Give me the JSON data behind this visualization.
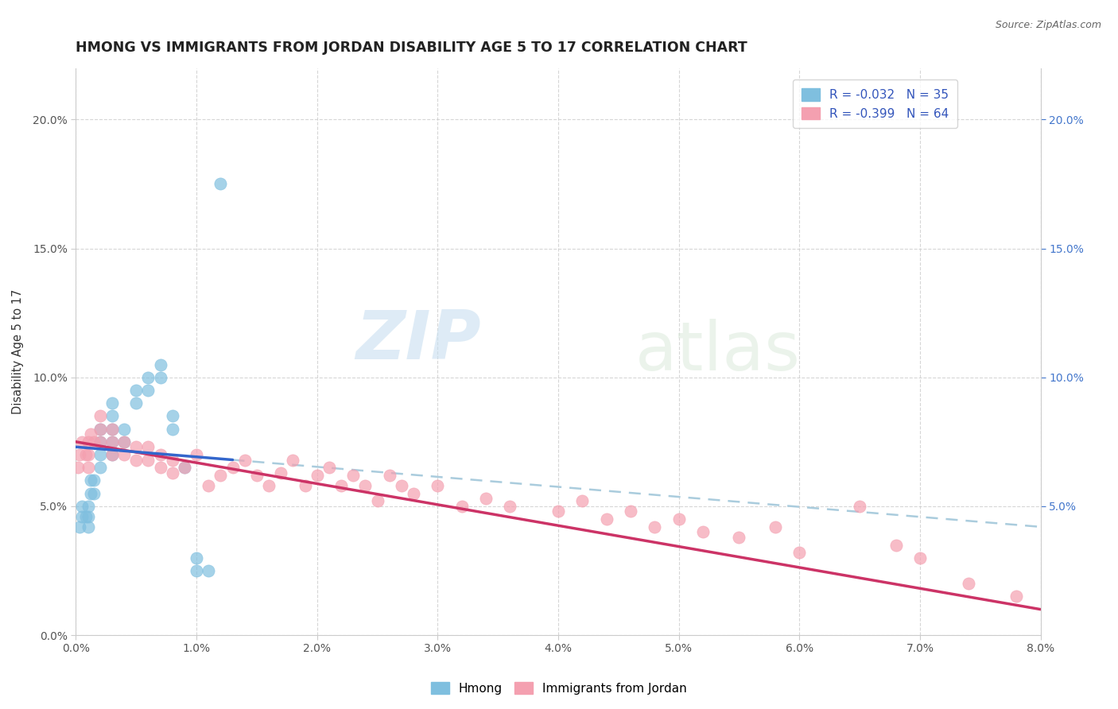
{
  "title": "HMONG VS IMMIGRANTS FROM JORDAN DISABILITY AGE 5 TO 17 CORRELATION CHART",
  "source": "Source: ZipAtlas.com",
  "ylabel": "Disability Age 5 to 17",
  "xlim": [
    0.0,
    0.08
  ],
  "ylim": [
    0.0,
    0.22
  ],
  "xticks": [
    0.0,
    0.01,
    0.02,
    0.03,
    0.04,
    0.05,
    0.06,
    0.07,
    0.08
  ],
  "yticks_left": [
    0.0,
    0.05,
    0.1,
    0.15,
    0.2
  ],
  "yticks_right": [
    0.05,
    0.1,
    0.15,
    0.2
  ],
  "hmong_color": "#7fbfdf",
  "jordan_color": "#f4a0b0",
  "hmong_line_color": "#3366cc",
  "jordan_line_color": "#cc3366",
  "dashed_line_color": "#aaccdd",
  "background_color": "#ffffff",
  "watermark_zip": "ZIP",
  "watermark_atlas": "atlas",
  "hmong_scatter_x": [
    0.0003,
    0.0005,
    0.0005,
    0.0008,
    0.001,
    0.001,
    0.001,
    0.0012,
    0.0012,
    0.0015,
    0.0015,
    0.002,
    0.002,
    0.002,
    0.002,
    0.003,
    0.003,
    0.003,
    0.003,
    0.003,
    0.004,
    0.004,
    0.005,
    0.005,
    0.006,
    0.006,
    0.007,
    0.007,
    0.008,
    0.008,
    0.009,
    0.01,
    0.01,
    0.011,
    0.012
  ],
  "hmong_scatter_y": [
    0.042,
    0.046,
    0.05,
    0.046,
    0.042,
    0.046,
    0.05,
    0.055,
    0.06,
    0.055,
    0.06,
    0.065,
    0.07,
    0.075,
    0.08,
    0.07,
    0.075,
    0.08,
    0.085,
    0.09,
    0.075,
    0.08,
    0.09,
    0.095,
    0.095,
    0.1,
    0.1,
    0.105,
    0.08,
    0.085,
    0.065,
    0.03,
    0.025,
    0.025,
    0.175
  ],
  "jordan_scatter_x": [
    0.0002,
    0.0003,
    0.0005,
    0.0008,
    0.001,
    0.001,
    0.001,
    0.0012,
    0.0015,
    0.002,
    0.002,
    0.002,
    0.003,
    0.003,
    0.003,
    0.004,
    0.004,
    0.005,
    0.005,
    0.006,
    0.006,
    0.007,
    0.007,
    0.008,
    0.008,
    0.009,
    0.01,
    0.011,
    0.012,
    0.013,
    0.014,
    0.015,
    0.016,
    0.017,
    0.018,
    0.019,
    0.02,
    0.021,
    0.022,
    0.023,
    0.024,
    0.025,
    0.026,
    0.027,
    0.028,
    0.03,
    0.032,
    0.034,
    0.036,
    0.04,
    0.042,
    0.044,
    0.046,
    0.048,
    0.05,
    0.052,
    0.055,
    0.058,
    0.06,
    0.065,
    0.068,
    0.07,
    0.074,
    0.078
  ],
  "jordan_scatter_y": [
    0.065,
    0.07,
    0.075,
    0.07,
    0.065,
    0.07,
    0.075,
    0.078,
    0.075,
    0.075,
    0.08,
    0.085,
    0.07,
    0.075,
    0.08,
    0.07,
    0.075,
    0.068,
    0.073,
    0.068,
    0.073,
    0.065,
    0.07,
    0.063,
    0.068,
    0.065,
    0.07,
    0.058,
    0.062,
    0.065,
    0.068,
    0.062,
    0.058,
    0.063,
    0.068,
    0.058,
    0.062,
    0.065,
    0.058,
    0.062,
    0.058,
    0.052,
    0.062,
    0.058,
    0.055,
    0.058,
    0.05,
    0.053,
    0.05,
    0.048,
    0.052,
    0.045,
    0.048,
    0.042,
    0.045,
    0.04,
    0.038,
    0.042,
    0.032,
    0.05,
    0.035,
    0.03,
    0.02,
    0.015
  ],
  "hmong_line_x": [
    0.0,
    0.013
  ],
  "hmong_line_y_start": 0.073,
  "hmong_line_y_end": 0.068,
  "dashed_line_x": [
    0.013,
    0.08
  ],
  "dashed_line_y_start": 0.068,
  "dashed_line_y_end": 0.042,
  "jordan_line_x_start": 0.0,
  "jordan_line_x_end": 0.08,
  "jordan_line_y_start": 0.075,
  "jordan_line_y_end": 0.01
}
